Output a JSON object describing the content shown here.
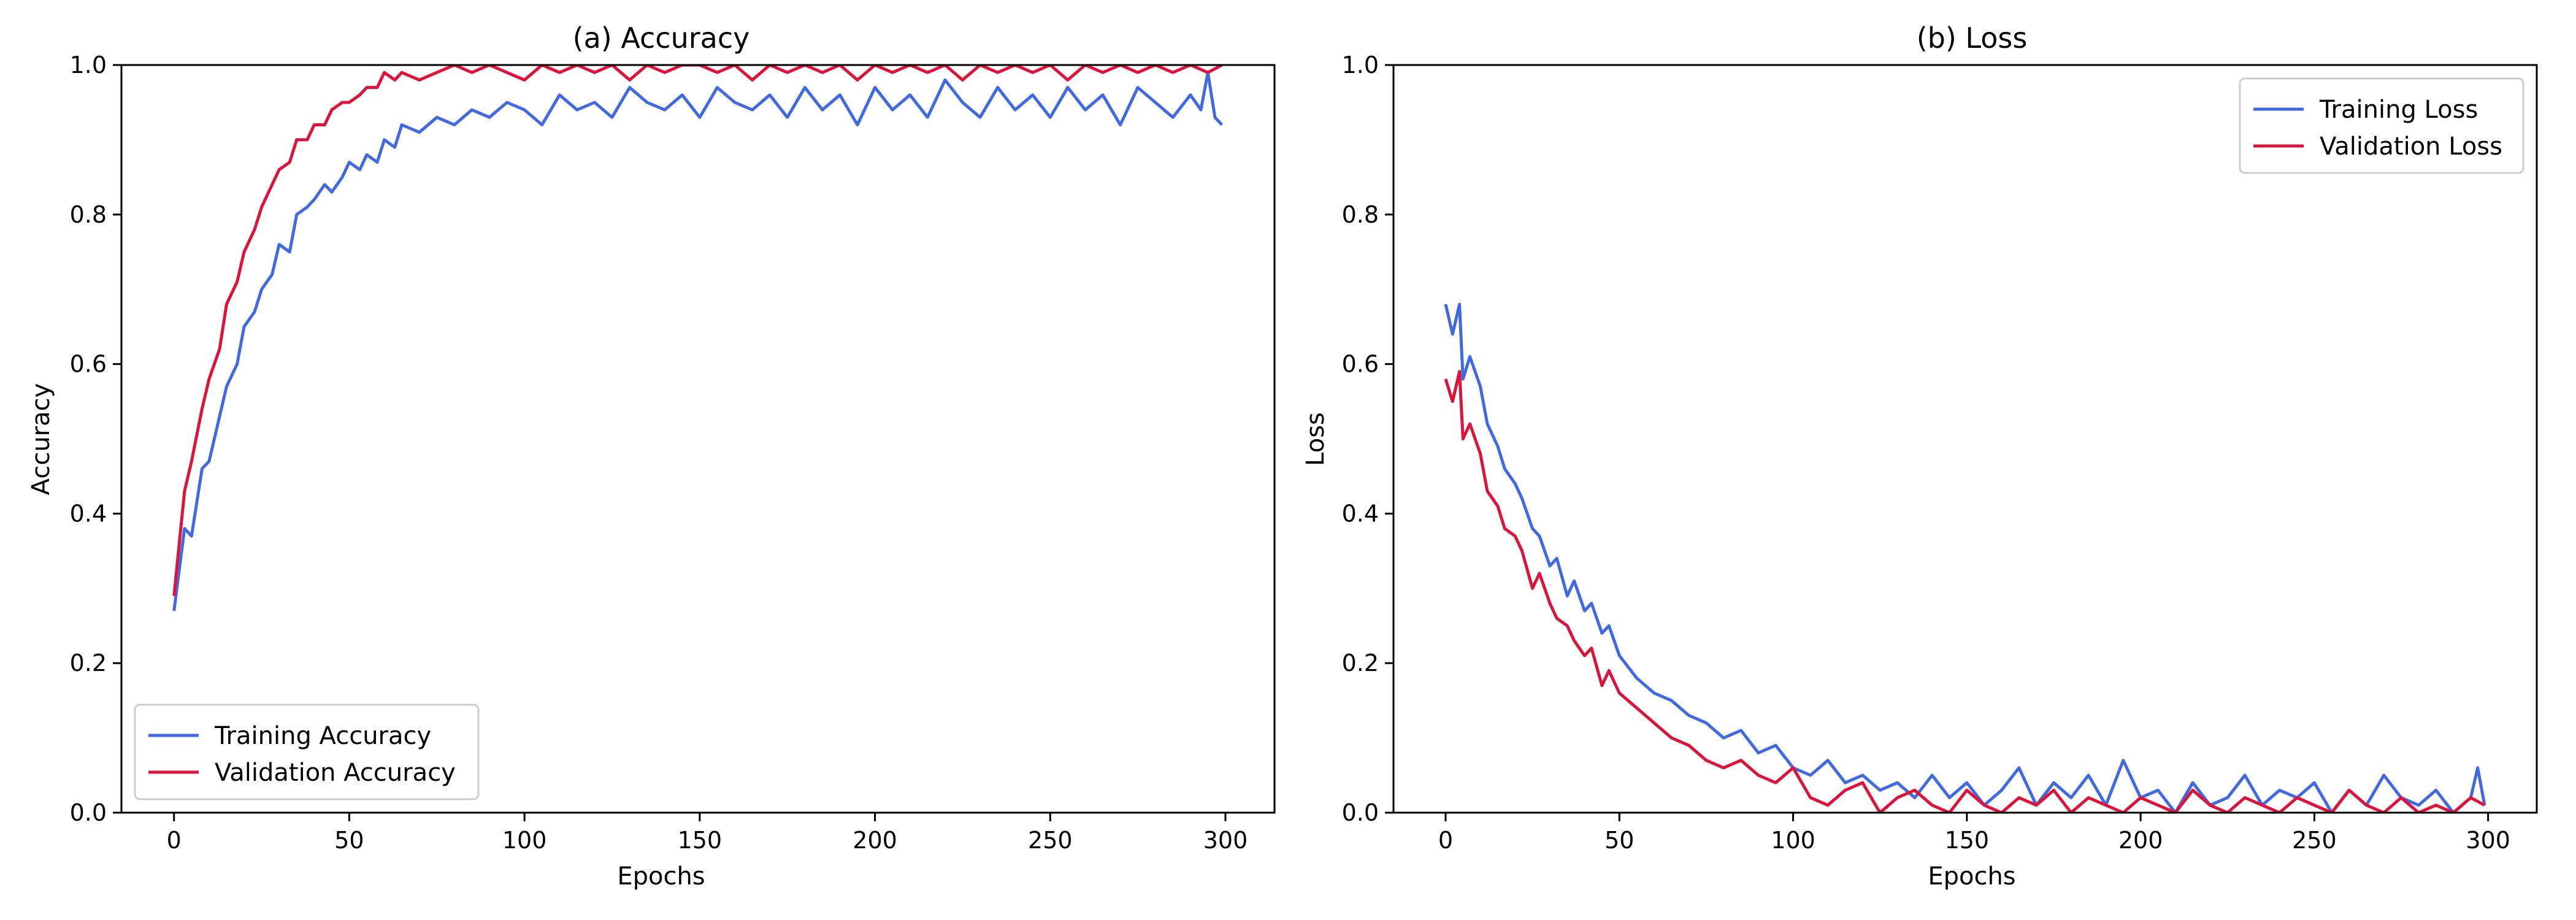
{
  "chart_data": [
    {
      "type": "line",
      "title": "(a) Accuracy",
      "xlabel": "Epochs",
      "ylabel": "Accuracy",
      "xlim": [
        -15,
        314
      ],
      "ylim": [
        0.0,
        1.0
      ],
      "xticks": [
        0,
        50,
        100,
        150,
        200,
        250,
        300
      ],
      "yticks": [
        0.0,
        0.2,
        0.4,
        0.6,
        0.8,
        1.0
      ],
      "xtick_labels": [
        "0",
        "50",
        "100",
        "150",
        "200",
        "250",
        "300"
      ],
      "ytick_labels": [
        "0.0",
        "0.2",
        "0.4",
        "0.6",
        "0.8",
        "1.0"
      ],
      "grid": false,
      "legend": "lower-left",
      "series": [
        {
          "name": "Training Accuracy",
          "color": "#4169e1",
          "x": [
            0,
            3,
            5,
            8,
            10,
            13,
            15,
            18,
            20,
            23,
            25,
            28,
            30,
            33,
            35,
            38,
            40,
            43,
            45,
            48,
            50,
            53,
            55,
            58,
            60,
            63,
            65,
            70,
            75,
            80,
            85,
            90,
            95,
            100,
            105,
            110,
            115,
            120,
            125,
            130,
            135,
            140,
            145,
            150,
            155,
            160,
            165,
            170,
            175,
            180,
            185,
            190,
            195,
            200,
            205,
            210,
            215,
            220,
            225,
            230,
            235,
            240,
            245,
            250,
            255,
            260,
            265,
            270,
            275,
            280,
            285,
            290,
            293,
            295,
            297,
            299
          ],
          "y": [
            0.27,
            0.38,
            0.37,
            0.46,
            0.47,
            0.53,
            0.57,
            0.6,
            0.65,
            0.67,
            0.7,
            0.72,
            0.76,
            0.75,
            0.8,
            0.81,
            0.82,
            0.84,
            0.83,
            0.85,
            0.87,
            0.86,
            0.88,
            0.87,
            0.9,
            0.89,
            0.92,
            0.91,
            0.93,
            0.92,
            0.94,
            0.93,
            0.95,
            0.94,
            0.92,
            0.96,
            0.94,
            0.95,
            0.93,
            0.97,
            0.95,
            0.94,
            0.96,
            0.93,
            0.97,
            0.95,
            0.94,
            0.96,
            0.93,
            0.97,
            0.94,
            0.96,
            0.92,
            0.97,
            0.94,
            0.96,
            0.93,
            0.98,
            0.95,
            0.93,
            0.97,
            0.94,
            0.96,
            0.93,
            0.97,
            0.94,
            0.96,
            0.92,
            0.97,
            0.95,
            0.93,
            0.96,
            0.94,
            0.99,
            0.93,
            0.92
          ]
        },
        {
          "name": "Validation Accuracy",
          "color": "#dc143c",
          "x": [
            0,
            3,
            5,
            8,
            10,
            13,
            15,
            18,
            20,
            23,
            25,
            28,
            30,
            33,
            35,
            38,
            40,
            43,
            45,
            48,
            50,
            53,
            55,
            58,
            60,
            63,
            65,
            70,
            75,
            80,
            85,
            90,
            95,
            100,
            105,
            110,
            115,
            120,
            125,
            130,
            135,
            140,
            145,
            150,
            155,
            160,
            165,
            170,
            175,
            180,
            185,
            190,
            195,
            200,
            205,
            210,
            215,
            220,
            225,
            230,
            235,
            240,
            245,
            250,
            255,
            260,
            265,
            270,
            275,
            280,
            285,
            290,
            295,
            299
          ],
          "y": [
            0.29,
            0.43,
            0.47,
            0.54,
            0.58,
            0.62,
            0.68,
            0.71,
            0.75,
            0.78,
            0.81,
            0.84,
            0.86,
            0.87,
            0.9,
            0.9,
            0.92,
            0.92,
            0.94,
            0.95,
            0.95,
            0.96,
            0.97,
            0.97,
            0.99,
            0.98,
            0.99,
            0.98,
            0.99,
            1.0,
            0.99,
            1.0,
            0.99,
            0.98,
            1.0,
            0.99,
            1.0,
            0.99,
            1.0,
            0.98,
            1.0,
            0.99,
            1.0,
            1.0,
            0.99,
            1.0,
            0.98,
            1.0,
            0.99,
            1.0,
            0.99,
            1.0,
            0.98,
            1.0,
            0.99,
            1.0,
            0.99,
            1.0,
            0.98,
            1.0,
            0.99,
            1.0,
            0.99,
            1.0,
            0.98,
            1.0,
            0.99,
            1.0,
            0.99,
            1.0,
            0.99,
            1.0,
            0.99,
            1.0
          ]
        }
      ]
    },
    {
      "type": "line",
      "title": "(b) Loss",
      "xlabel": "Epochs",
      "ylabel": "Loss",
      "xlim": [
        -15,
        314
      ],
      "ylim": [
        0.0,
        1.0
      ],
      "xticks": [
        0,
        50,
        100,
        150,
        200,
        250,
        300
      ],
      "yticks": [
        0.0,
        0.2,
        0.4,
        0.6,
        0.8,
        1.0
      ],
      "xtick_labels": [
        "0",
        "50",
        "100",
        "150",
        "200",
        "250",
        "300"
      ],
      "ytick_labels": [
        "0.0",
        "0.2",
        "0.4",
        "0.6",
        "0.8",
        "1.0"
      ],
      "grid": false,
      "legend": "upper-right",
      "series": [
        {
          "name": "Training Loss",
          "color": "#4169e1",
          "x": [
            0,
            2,
            4,
            5,
            7,
            10,
            12,
            15,
            17,
            20,
            22,
            25,
            27,
            30,
            32,
            35,
            37,
            40,
            42,
            45,
            47,
            50,
            55,
            60,
            65,
            70,
            75,
            80,
            85,
            90,
            95,
            100,
            105,
            110,
            115,
            120,
            125,
            130,
            135,
            140,
            145,
            150,
            155,
            160,
            165,
            170,
            175,
            180,
            185,
            190,
            195,
            200,
            205,
            210,
            215,
            220,
            225,
            230,
            235,
            240,
            245,
            250,
            255,
            260,
            265,
            270,
            275,
            280,
            285,
            290,
            295,
            297,
            299
          ],
          "y": [
            0.68,
            0.64,
            0.68,
            0.58,
            0.61,
            0.57,
            0.52,
            0.49,
            0.46,
            0.44,
            0.42,
            0.38,
            0.37,
            0.33,
            0.34,
            0.29,
            0.31,
            0.27,
            0.28,
            0.24,
            0.25,
            0.21,
            0.18,
            0.16,
            0.15,
            0.13,
            0.12,
            0.1,
            0.11,
            0.08,
            0.09,
            0.06,
            0.05,
            0.07,
            0.04,
            0.05,
            0.03,
            0.04,
            0.02,
            0.05,
            0.02,
            0.04,
            0.01,
            0.03,
            0.06,
            0.01,
            0.04,
            0.02,
            0.05,
            0.01,
            0.07,
            0.02,
            0.03,
            0.0,
            0.04,
            0.01,
            0.02,
            0.05,
            0.01,
            0.03,
            0.02,
            0.04,
            0.0,
            0.03,
            0.01,
            0.05,
            0.02,
            0.01,
            0.03,
            0.0,
            0.02,
            0.06,
            0.01
          ]
        },
        {
          "name": "Validation Loss",
          "color": "#dc143c",
          "x": [
            0,
            2,
            4,
            5,
            7,
            10,
            12,
            15,
            17,
            20,
            22,
            25,
            27,
            30,
            32,
            35,
            37,
            40,
            42,
            45,
            47,
            50,
            55,
            60,
            65,
            70,
            75,
            80,
            85,
            90,
            95,
            100,
            105,
            110,
            115,
            120,
            125,
            130,
            135,
            140,
            145,
            150,
            155,
            160,
            165,
            170,
            175,
            180,
            185,
            190,
            195,
            200,
            205,
            210,
            215,
            220,
            225,
            230,
            235,
            240,
            245,
            250,
            255,
            260,
            265,
            270,
            275,
            280,
            285,
            290,
            295,
            299
          ],
          "y": [
            0.58,
            0.55,
            0.59,
            0.5,
            0.52,
            0.48,
            0.43,
            0.41,
            0.38,
            0.37,
            0.35,
            0.3,
            0.32,
            0.28,
            0.26,
            0.25,
            0.23,
            0.21,
            0.22,
            0.17,
            0.19,
            0.16,
            0.14,
            0.12,
            0.1,
            0.09,
            0.07,
            0.06,
            0.07,
            0.05,
            0.04,
            0.06,
            0.02,
            0.01,
            0.03,
            0.04,
            0.0,
            0.02,
            0.03,
            0.01,
            0.0,
            0.03,
            0.01,
            0.0,
            0.02,
            0.01,
            0.03,
            0.0,
            0.02,
            0.01,
            0.0,
            0.02,
            0.01,
            0.0,
            0.03,
            0.01,
            0.0,
            0.02,
            0.01,
            0.0,
            0.02,
            0.01,
            0.0,
            0.03,
            0.01,
            0.0,
            0.02,
            0.0,
            0.01,
            0.0,
            0.02,
            0.01
          ]
        }
      ]
    }
  ]
}
